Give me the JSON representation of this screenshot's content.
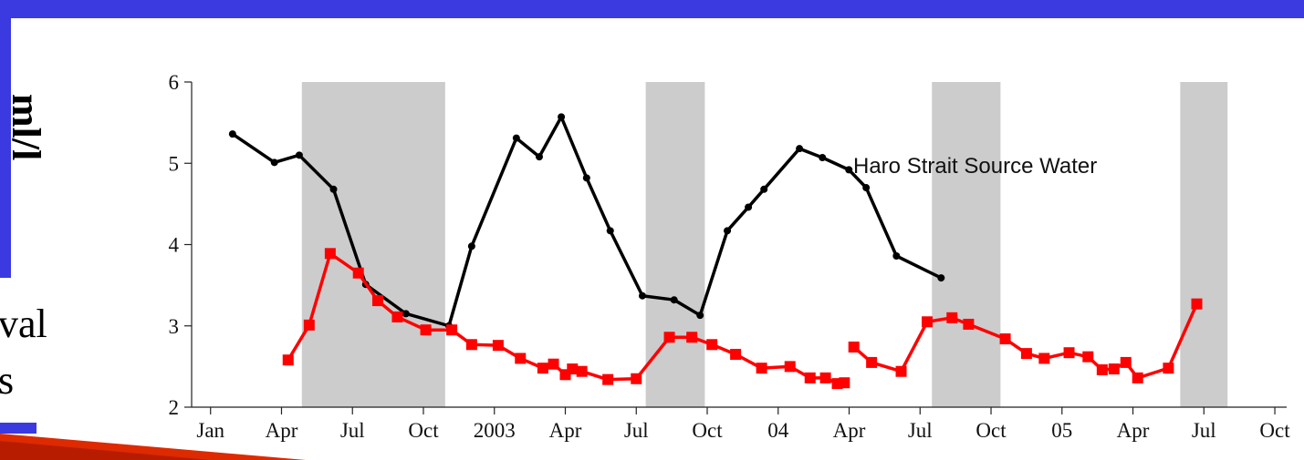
{
  "slide": {
    "side_label": "ml/l",
    "fragments": [
      "val",
      "s"
    ]
  },
  "chart_data": {
    "type": "line",
    "annotation": "Haro Strait Source Water",
    "xlim": [
      -0.8,
      45.5
    ],
    "ylim": [
      2,
      6
    ],
    "yticks": [
      2,
      3,
      4,
      5,
      6
    ],
    "xticks": [
      {
        "value": 0,
        "label": "Jan"
      },
      {
        "value": 3,
        "label": "Apr"
      },
      {
        "value": 6,
        "label": "Jul"
      },
      {
        "value": 9,
        "label": "Oct"
      },
      {
        "value": 12,
        "label": "2003"
      },
      {
        "value": 15,
        "label": "Apr"
      },
      {
        "value": 18,
        "label": "Jul"
      },
      {
        "value": 21,
        "label": "Oct"
      },
      {
        "value": 24,
        "label": "04"
      },
      {
        "value": 27,
        "label": "Apr"
      },
      {
        "value": 30,
        "label": "Jul"
      },
      {
        "value": 33,
        "label": "Oct"
      },
      {
        "value": 36,
        "label": "05"
      },
      {
        "value": 39,
        "label": "Apr"
      },
      {
        "value": 42,
        "label": "Jul"
      },
      {
        "value": 45,
        "label": "Oct"
      }
    ],
    "shaded_spans": [
      [
        3.86,
        9.92
      ],
      [
        18.4,
        20.9
      ],
      [
        30.5,
        33.4
      ],
      [
        41.0,
        43.0
      ]
    ],
    "shade_color": "#cccccc",
    "series": [
      {
        "color": "#000000",
        "marker": "circle",
        "x": [
          0.93,
          2.7,
          3.75,
          5.2,
          6.56,
          8.26,
          10.08,
          11.04,
          12.93,
          13.9,
          14.83,
          15.9,
          16.9,
          18.26,
          19.6,
          20.7,
          21.85,
          22.74,
          23.4,
          24.9,
          25.87,
          26.99,
          27.72,
          29.0,
          30.89
        ],
        "values": [
          5.36,
          5.01,
          5.1,
          4.68,
          3.51,
          3.15,
          3.0,
          3.98,
          5.31,
          5.08,
          5.57,
          4.82,
          4.17,
          3.37,
          3.32,
          3.13,
          4.17,
          4.46,
          4.68,
          5.18,
          5.07,
          4.92,
          4.7,
          3.86,
          3.59
        ]
      },
      {
        "color": "#ff0000",
        "marker": "square",
        "x": [
          3.28,
          4.17,
          5.06,
          6.25,
          7.07,
          7.9,
          9.1,
          10.2,
          11.04,
          12.16,
          13.1,
          14.05,
          14.5,
          15.0,
          15.3,
          15.7,
          16.8,
          18.0,
          19.4,
          20.35,
          21.2,
          22.2,
          23.3,
          24.5,
          25.35,
          26.0,
          26.5,
          26.8,
          27.0,
          27.2,
          27.95,
          29.2,
          30.3,
          31.35,
          32.05,
          33.6,
          34.5,
          35.25,
          36.3,
          37.1,
          37.7,
          38.2,
          38.7,
          39.2,
          40.5,
          41.7
        ],
        "values": [
          2.58,
          3.01,
          3.89,
          3.65,
          3.31,
          3.11,
          2.95,
          2.95,
          2.77,
          2.76,
          2.6,
          2.48,
          2.53,
          2.4,
          2.47,
          2.44,
          2.34,
          2.35,
          2.86,
          2.86,
          2.77,
          2.65,
          2.48,
          2.5,
          2.36,
          2.36,
          2.29,
          2.3,
          null,
          2.74,
          2.55,
          2.44,
          3.05,
          3.1,
          3.02,
          2.84,
          2.66,
          2.6,
          2.67,
          2.62,
          2.46,
          2.47,
          2.55,
          2.36,
          2.48,
          3.27
        ]
      }
    ]
  }
}
